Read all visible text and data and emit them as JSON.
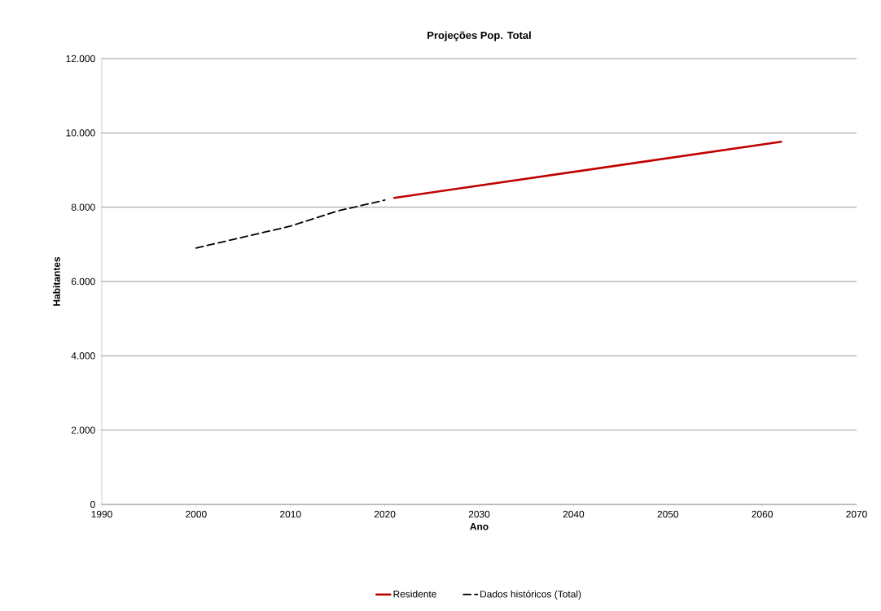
{
  "chart_data": {
    "type": "line",
    "title": "Projeções Pop. Total",
    "xlabel": "Ano",
    "ylabel": "Habitantes",
    "xlim": [
      1990,
      2070
    ],
    "xticks": [
      1990,
      2000,
      2010,
      2020,
      2030,
      2040,
      2050,
      2060,
      2070
    ],
    "ylim": [
      0,
      12000
    ],
    "yticks": [
      0,
      {
        "value": 2000,
        "label": "2.000"
      },
      {
        "value": 4000,
        "label": "4.000"
      },
      {
        "value": 6000,
        "label": "6.000"
      },
      {
        "value": 8000,
        "label": "8.000"
      },
      {
        "value": 10000,
        "label": "10.000"
      },
      {
        "value": 12000,
        "label": "12.000"
      }
    ],
    "grid": "y",
    "legend": "bottom",
    "marker": "none",
    "series": [
      {
        "name": "Residente",
        "color": "#c00000",
        "line_style": "solid",
        "x": [
          2021,
          2062
        ],
        "values": [
          8250,
          9760
        ]
      },
      {
        "name": "Dados históricos (Total)",
        "color": "#000000",
        "line_style": "dashed",
        "x": [
          2000,
          2010,
          2015,
          2020
        ],
        "values": [
          6900,
          7490,
          7900,
          8190
        ]
      }
    ]
  }
}
